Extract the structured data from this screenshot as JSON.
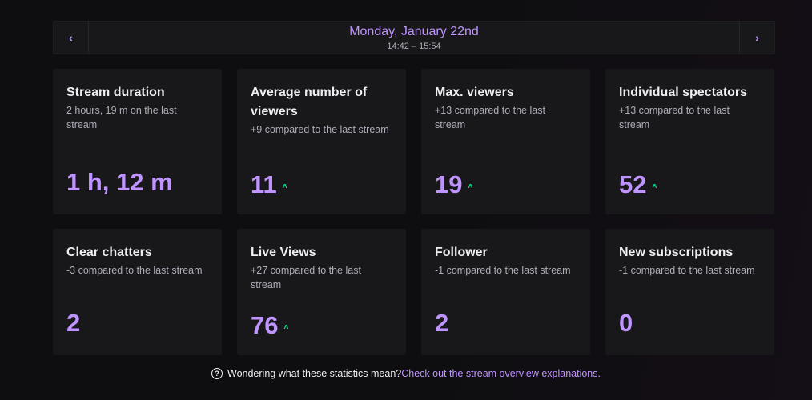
{
  "header": {
    "date": "Monday, January 22nd",
    "time_range": "14:42 – 15:54",
    "prev_icon": "‹",
    "next_icon": "›"
  },
  "cards": [
    {
      "title": "Stream duration",
      "subtitle": "2 hours, 19 m on the last stream",
      "value": "1 h, 12 m",
      "trend": ""
    },
    {
      "title": "Average number of viewers",
      "subtitle": "+9 compared to the last stream",
      "value": "11",
      "trend": "up"
    },
    {
      "title": "Max. viewers",
      "subtitle": "+13 compared to the last stream",
      "value": "19",
      "trend": "up"
    },
    {
      "title": "Individual spectators",
      "subtitle": "+13 compared to the last stream",
      "value": "52",
      "trend": "up"
    },
    {
      "title": "Clear chatters",
      "subtitle": "-3 compared to the last stream",
      "value": "2",
      "trend": ""
    },
    {
      "title": "Live Views",
      "subtitle": "+27 compared to the last stream",
      "value": "76",
      "trend": "up"
    },
    {
      "title": "Follower",
      "subtitle": "-1 compared to the last stream",
      "value": "2",
      "trend": ""
    },
    {
      "title": "New subscriptions",
      "subtitle": "-1 compared to the last stream",
      "value": "0",
      "trend": ""
    }
  ],
  "trend_up_glyph": "˄",
  "footer": {
    "text": "Wondering what these statistics mean?",
    "link": "Check out the stream overview explanations.",
    "help_icon": "?"
  },
  "colors": {
    "accent": "#bf94ff",
    "trend_up": "#00f593",
    "card_bg": "#18181b",
    "page_bg": "#0e0e10"
  }
}
